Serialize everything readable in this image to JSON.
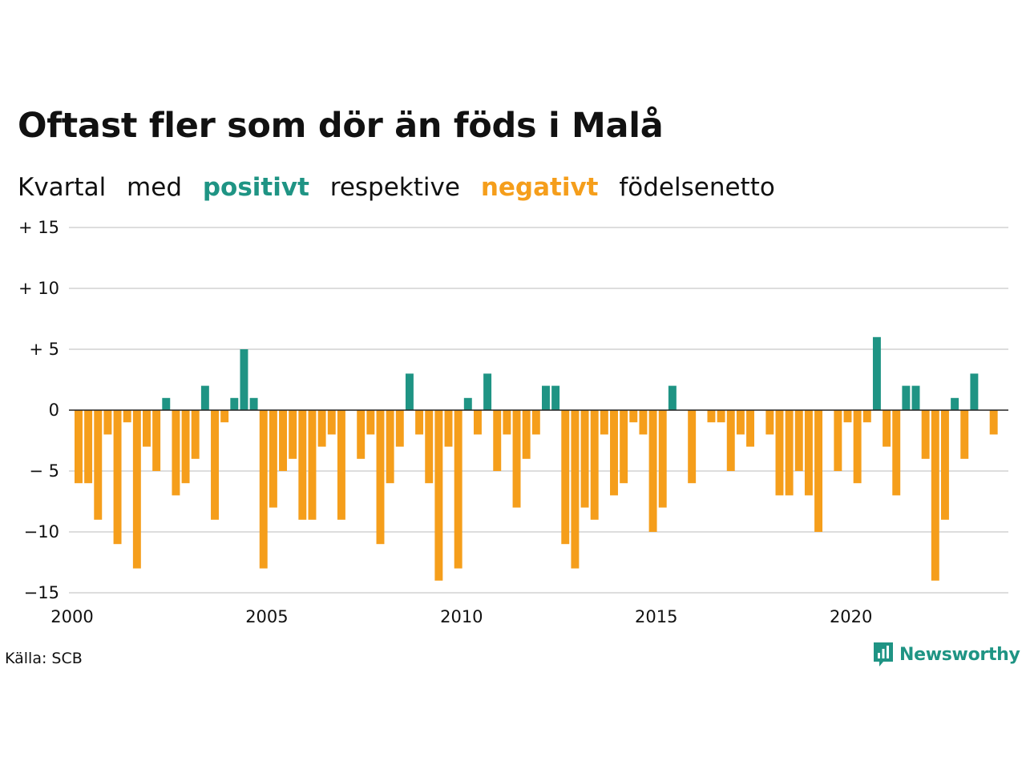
{
  "title": "Oftast fler som dör än föds i Malå",
  "subtitle": {
    "parts": [
      "Kvartal",
      "med",
      "positivt",
      "respektive",
      "negativt",
      "födelsenetto"
    ]
  },
  "source": "Källa: SCB",
  "brand": "Newsworthy",
  "colors": {
    "positive": "#1f9484",
    "negative": "#f59e1b",
    "grid": "#dddddd",
    "zero_line": "#222222"
  },
  "chart_data": {
    "type": "bar",
    "ylim": [
      -15,
      15
    ],
    "yticks": [
      15,
      10,
      5,
      0,
      -5,
      -10,
      -15
    ],
    "ytick_labels": [
      "+ 15",
      "+ 10",
      "+  5",
      "0",
      "− 5",
      "−10",
      "−15"
    ],
    "xticks": [
      2000,
      2005,
      2010,
      2015,
      2020
    ],
    "x_start": "2000 Q1",
    "frequency": "quarterly",
    "grid": true,
    "values": [
      -6,
      -6,
      -9,
      -2,
      -11,
      -1,
      -13,
      -3,
      -5,
      1,
      -7,
      -6,
      -4,
      2,
      -9,
      -1,
      1,
      5,
      1,
      -13,
      -8,
      -5,
      -4,
      -9,
      -9,
      -3,
      -2,
      -9,
      0,
      -4,
      -2,
      -11,
      -6,
      -3,
      3,
      -2,
      -6,
      -14,
      -3,
      -13,
      1,
      -2,
      3,
      -5,
      -2,
      -8,
      -4,
      -2,
      2,
      2,
      -11,
      -13,
      -8,
      -9,
      -2,
      -7,
      -6,
      -1,
      -2,
      -10,
      -8,
      2,
      0,
      -6,
      0,
      -1,
      -1,
      -5,
      -2,
      -3,
      0,
      -2,
      -7,
      -7,
      -5,
      -7,
      -10,
      0,
      -5,
      -1,
      -6,
      -1,
      6,
      -3,
      -7,
      2,
      2,
      -4,
      -14,
      -9,
      1,
      -4,
      3,
      0,
      -2
    ]
  }
}
